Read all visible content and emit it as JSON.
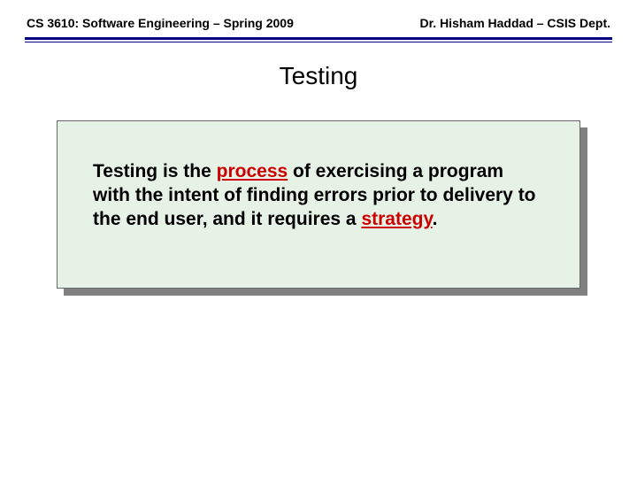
{
  "header": {
    "left": "CS 3610: Software Engineering – Spring 2009",
    "right": "Dr. Hisham Haddad – CSIS Dept."
  },
  "slide": {
    "title": "Testing",
    "body": {
      "seg1": "Testing is the ",
      "highlight1": "process",
      "seg2": " of exercising a program with the intent of finding errors prior to delivery to the end user, and it requires a ",
      "highlight2": "strategy",
      "seg3": "."
    }
  },
  "style": {
    "rule_color": "#000080",
    "highlight_color": "#cc0000",
    "box_bg": "#e6f2e6",
    "shadow_color": "#808080",
    "text_color": "#000000",
    "title_fontsize": 28,
    "body_fontsize": 21,
    "header_fontsize": 14
  }
}
